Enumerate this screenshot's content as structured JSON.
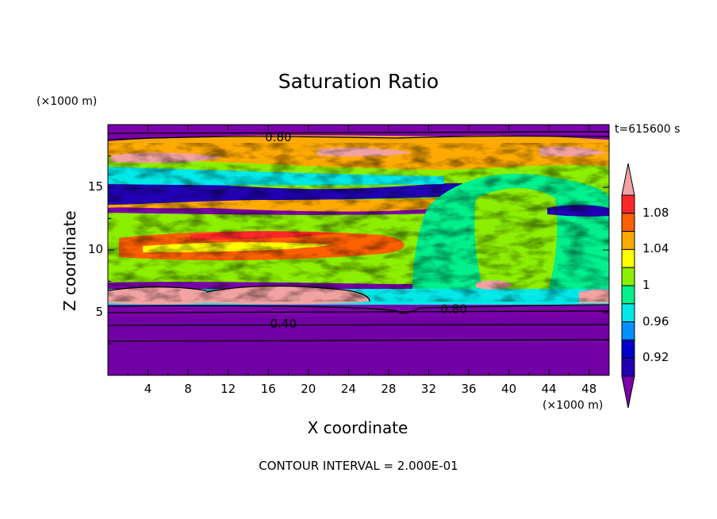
{
  "chart_data": {
    "type": "heatmap",
    "title": "Saturation Ratio",
    "xlabel": "X coordinate",
    "ylabel": "Z coordinate",
    "x_unit": "(×1000 m)",
    "y_unit": "(×1000 m)",
    "time_label": "t=615600 s",
    "footer": "CONTOUR INTERVAL = 2.000E-01",
    "xlim": [
      0,
      50
    ],
    "ylim": [
      0,
      20
    ],
    "x_ticks": [
      "4",
      "8",
      "12",
      "16",
      "20",
      "24",
      "28",
      "32",
      "36",
      "40",
      "44",
      "48"
    ],
    "y_ticks": [
      "5",
      "10",
      "15"
    ],
    "contour_labels": [
      {
        "text": "0.80",
        "x": 17,
        "z": 19.0
      },
      {
        "text": "0.40",
        "x": 17.5,
        "z": 4.1
      },
      {
        "text": "0.80",
        "x": 34.5,
        "z": 5.3
      }
    ],
    "colorbar": {
      "labels": [
        "1.08",
        "1.04",
        "1",
        "0.96",
        "0.92"
      ],
      "levels": [
        0.92,
        0.94,
        0.96,
        0.98,
        1.0,
        1.02,
        1.04,
        1.06,
        1.08,
        1.1
      ],
      "colors": [
        "#7a00aa",
        "#2200b4",
        "#0000c8",
        "#0090ff",
        "#00e8e8",
        "#00f08c",
        "#8cee00",
        "#ffff00",
        "#ffaa00",
        "#ff6000",
        "#ff2828",
        "#f2a2a2"
      ]
    }
  }
}
